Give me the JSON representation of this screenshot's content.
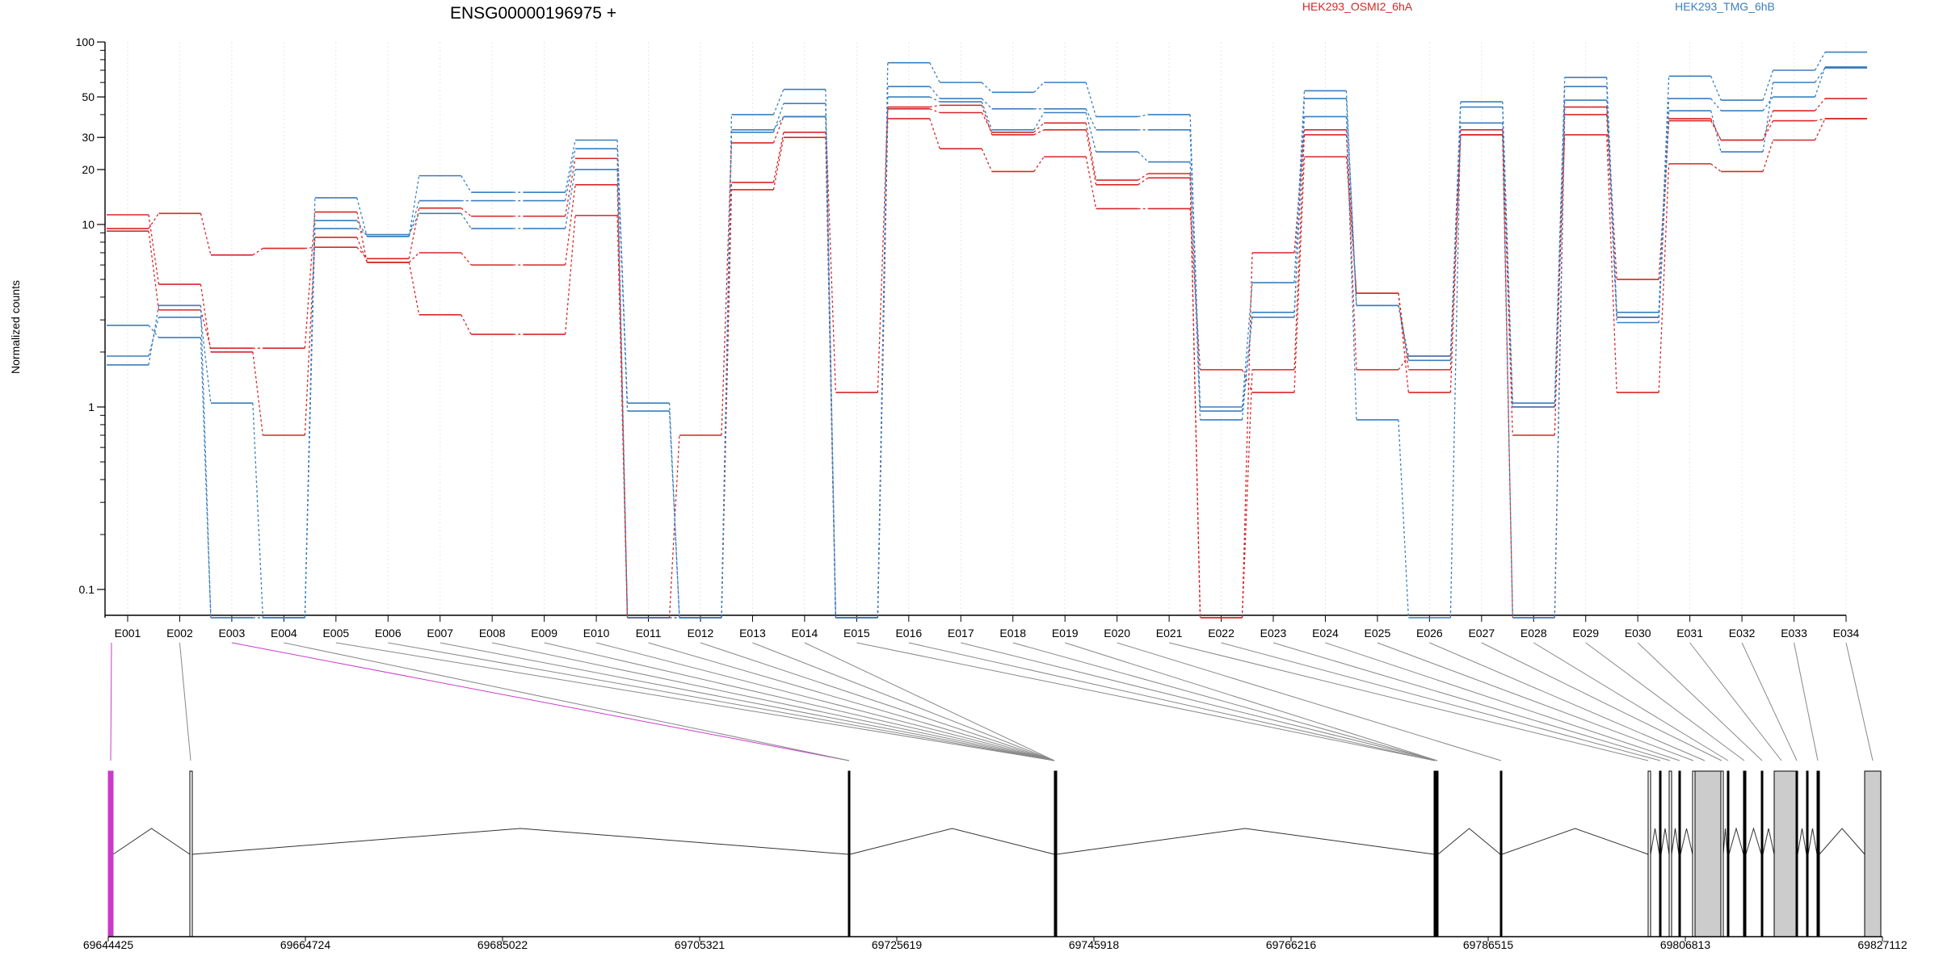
{
  "colors": {
    "osmi": "#d62728",
    "tmg": "#3a7ebf",
    "highlight": "#c93cc9",
    "exon_fill": "#cccccc",
    "axis": "#000000",
    "grid": "#e6e6e6"
  },
  "chart_data": {
    "type": "line",
    "title": "ENSG00000196975 +",
    "ylabel": "Normalized counts",
    "y_scale": "log",
    "ylim": [
      0.07,
      100
    ],
    "y_ticks": [
      0.1,
      1,
      10,
      20,
      30,
      50,
      100
    ],
    "y_tick_labels": [
      "0.1",
      "1",
      "10",
      "20",
      "30",
      "50",
      "100"
    ],
    "legend_placement": "top",
    "legend": [
      {
        "label": "HEK293_OSMI2_6hA",
        "color": "#d62728"
      },
      {
        "label": "HEK293_TMG_6hB",
        "color": "#3a7ebf"
      }
    ],
    "categories": [
      "E001",
      "E002",
      "E003",
      "E004",
      "E005",
      "E006",
      "E007",
      "E008",
      "E009",
      "E010",
      "E011",
      "E012",
      "E013",
      "E014",
      "E015",
      "E016",
      "E017",
      "E018",
      "E019",
      "E020",
      "E021",
      "E022",
      "E023",
      "E024",
      "E025",
      "E026",
      "E027",
      "E028",
      "E029",
      "E030",
      "E031",
      "E032",
      "E033",
      "E034"
    ],
    "series": [
      {
        "group": "osmi",
        "values": [
          9.5,
          11.5,
          6.8,
          7.4,
          7.5,
          6.5,
          12.3,
          11.1,
          11.1,
          23,
          0.07,
          0.7,
          28,
          39,
          1.2,
          43,
          41,
          32,
          36,
          17.5,
          19,
          0.07,
          1.6,
          31,
          4.2,
          1.6,
          33,
          0.7,
          44,
          5,
          37,
          29,
          42,
          49
        ]
      },
      {
        "group": "osmi",
        "values": [
          11.3,
          4.7,
          2.0,
          0.7,
          8.5,
          6.2,
          7.0,
          6.0,
          6.0,
          16.5,
          0.07,
          0.07,
          17.0,
          32,
          0.07,
          44,
          45,
          31,
          33,
          16.5,
          18,
          0.07,
          7.0,
          33,
          1.6,
          1.9,
          31,
          0.07,
          40,
          3.1,
          38,
          29,
          37,
          38
        ]
      },
      {
        "group": "osmi",
        "values": [
          9.2,
          3.4,
          2.1,
          2.1,
          11.7,
          6.2,
          3.2,
          2.5,
          2.5,
          11.2,
          0.07,
          0.07,
          15.5,
          30,
          0.07,
          38,
          26,
          19.5,
          23.5,
          12.2,
          12.2,
          1.6,
          1.2,
          23.5,
          4.2,
          1.2,
          31,
          1.0,
          31,
          1.2,
          21.5,
          19.5,
          29,
          38
        ]
      },
      {
        "group": "tmg",
        "values": [
          1.9,
          3.1,
          1.05,
          0.07,
          14,
          8.6,
          18.5,
          15,
          15,
          29,
          1.05,
          0.07,
          40,
          55,
          0.07,
          77,
          60,
          53,
          60,
          39,
          40,
          1.0,
          4.8,
          54,
          3.6,
          1.9,
          47,
          1.05,
          64,
          3.3,
          65,
          48,
          70,
          88
        ]
      },
      {
        "group": "tmg",
        "values": [
          1.7,
          3.6,
          0.07,
          0.07,
          10.5,
          8.6,
          13.5,
          13.5,
          13.5,
          26,
          0.95,
          0.07,
          32,
          46,
          0.07,
          57,
          49,
          43,
          43,
          33,
          33,
          0.95,
          3.1,
          49,
          3.6,
          1.8,
          44,
          1.0,
          57,
          3.1,
          49,
          42,
          50,
          73
        ]
      },
      {
        "group": "tmg",
        "values": [
          2.8,
          2.4,
          0.07,
          0.07,
          9.5,
          8.8,
          11.5,
          9.5,
          9.5,
          20,
          0.07,
          0.07,
          33,
          39,
          0.07,
          50,
          47,
          33,
          41,
          25,
          22,
          0.85,
          3.3,
          39,
          0.85,
          0.07,
          36,
          0.07,
          48,
          2.9,
          42,
          25,
          60,
          72
        ]
      }
    ],
    "genome_axis": {
      "ticks": [
        "69644425",
        "69664724",
        "69685022",
        "69705321",
        "69725619",
        "69745918",
        "69766216",
        "69786515",
        "69806813",
        "69827112"
      ]
    }
  }
}
